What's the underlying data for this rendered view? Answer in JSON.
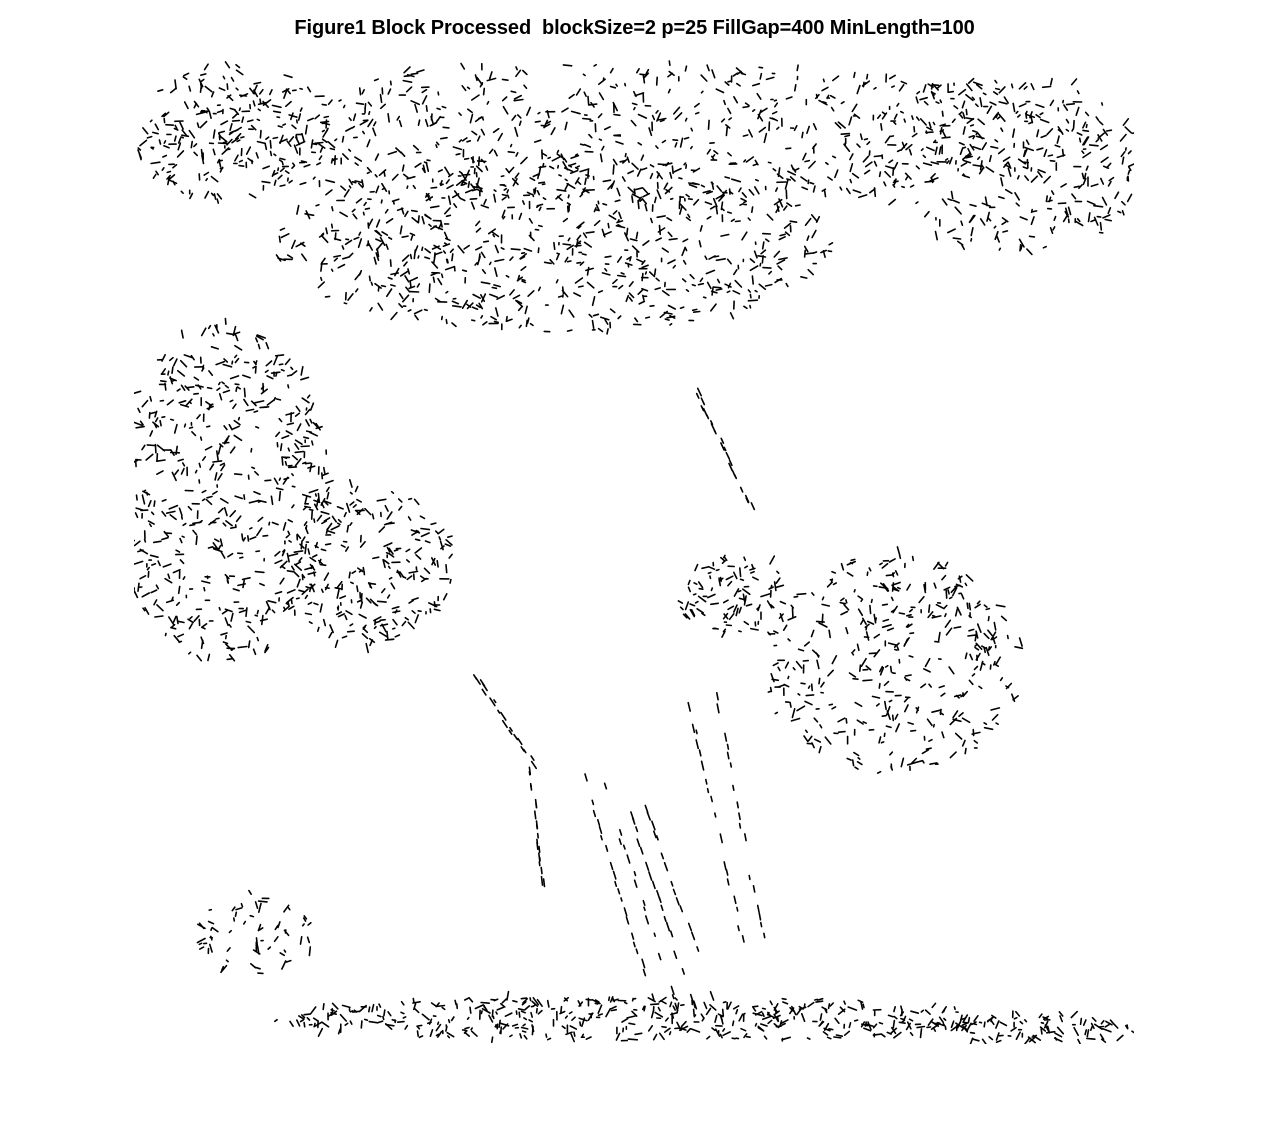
{
  "figure": {
    "title": "Figure1 Block Processed  blockSize=2 p=25 FillGap=400 MinLength=100"
  },
  "colors": {
    "background": "#ffffff",
    "edge": "#000000",
    "title": "#000000"
  }
}
